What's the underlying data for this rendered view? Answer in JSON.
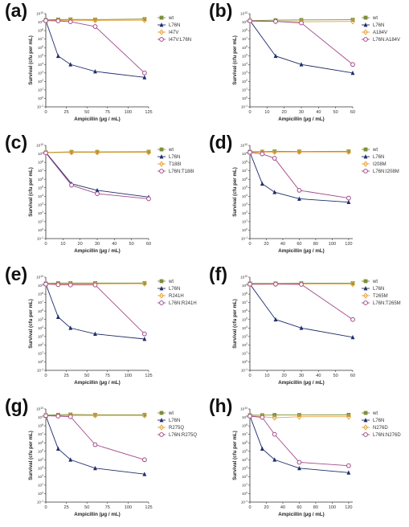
{
  "chart_data": [
    {
      "panel": "(a)",
      "type": "line",
      "xlabel": "Ampicillin (μg / mL)",
      "ylabel": "Survival (cfu per mL)",
      "xlim": [
        0,
        125
      ],
      "xticks": [
        "0",
        "25",
        "50",
        "75",
        "100",
        "125"
      ],
      "ylim_exp": [
        -1,
        10
      ],
      "log_y": true,
      "series": [
        {
          "name": "wt",
          "color": "#7a8f3a",
          "marker": "square",
          "x": [
            0,
            15,
            30,
            60,
            120
          ],
          "y": [
            1800000000.0,
            2000000000.0,
            2100000000.0,
            2000000000.0,
            2300000000.0
          ]
        },
        {
          "name": "L76N",
          "color": "#1f2d6b",
          "marker": "triangle",
          "x": [
            0,
            15,
            30,
            60,
            120
          ],
          "y": [
            1500000000.0,
            100000.0,
            10000.0,
            1500.0,
            300.0
          ]
        },
        {
          "name": "I47V",
          "color": "#e8a33a",
          "marker": "diamond",
          "x": [
            0,
            15,
            30,
            60,
            120
          ],
          "y": [
            1500000000.0,
            1600000000.0,
            1700000000.0,
            1600000000.0,
            1700000000.0
          ]
        },
        {
          "name": "I47V:L76N",
          "color": "#a24a8a",
          "marker": "circle",
          "x": [
            0,
            15,
            30,
            60,
            120
          ],
          "y": [
            1500000000.0,
            1400000000.0,
            1100000000.0,
            300000000.0,
            1000.0
          ]
        }
      ]
    },
    {
      "panel": "(b)",
      "type": "line",
      "xlabel": "Ampicillin (μg / mL)",
      "ylabel": "Survival (cfu per mL)",
      "xlim": [
        0,
        60
      ],
      "xticks": [
        "0",
        "10",
        "20",
        "30",
        "40",
        "50",
        "60"
      ],
      "ylim_exp": [
        -1,
        10
      ],
      "log_y": true,
      "series": [
        {
          "name": "wt",
          "color": "#7a8f3a",
          "marker": "square",
          "x": [
            0,
            15,
            30,
            60
          ],
          "y": [
            1500000000.0,
            1700000000.0,
            1800000000.0,
            1900000000.0
          ]
        },
        {
          "name": "L76N",
          "color": "#1f2d6b",
          "marker": "triangle",
          "x": [
            0,
            15,
            30,
            60
          ],
          "y": [
            1500000000.0,
            100000.0,
            10000.0,
            1000.0
          ]
        },
        {
          "name": "A184V",
          "color": "#e8a33a",
          "marker": "diamond",
          "x": [
            0,
            15,
            30,
            60
          ],
          "y": [
            1300000000.0,
            1200000000.0,
            1100000000.0,
            1200000000.0
          ]
        },
        {
          "name": "L76N:A184V",
          "color": "#a24a8a",
          "marker": "circle",
          "x": [
            0,
            15,
            30,
            60
          ],
          "y": [
            1400000000.0,
            1200000000.0,
            800000000.0,
            10000.0
          ]
        }
      ]
    },
    {
      "panel": "(c)",
      "type": "line",
      "xlabel": "Ampicillin (μg / mL)",
      "ylabel": "Survival (cfu per mL)",
      "xlim": [
        0,
        60
      ],
      "xticks": [
        "0",
        "10",
        "20",
        "30",
        "40",
        "50",
        "60"
      ],
      "ylim_exp": [
        -1,
        10
      ],
      "log_y": true,
      "series": [
        {
          "name": "wt",
          "color": "#7a8f3a",
          "marker": "square",
          "x": [
            0,
            15,
            30,
            60
          ],
          "y": [
            1500000000.0,
            1700000000.0,
            1700000000.0,
            1800000000.0
          ]
        },
        {
          "name": "L76N",
          "color": "#1f2d6b",
          "marker": "triangle",
          "x": [
            0,
            15,
            30,
            60
          ],
          "y": [
            1500000000.0,
            300000.0,
            50000.0,
            8000.0
          ]
        },
        {
          "name": "T188I",
          "color": "#e8a33a",
          "marker": "diamond",
          "x": [
            0,
            15,
            30,
            60
          ],
          "y": [
            1400000000.0,
            1500000000.0,
            1500000000.0,
            1500000000.0
          ]
        },
        {
          "name": "L76N:T188I",
          "color": "#a24a8a",
          "marker": "circle",
          "x": [
            0,
            15,
            30,
            60
          ],
          "y": [
            1300000000.0,
            200000.0,
            20000.0,
            5000.0
          ]
        }
      ]
    },
    {
      "panel": "(d)",
      "type": "line",
      "xlabel": "Ampicillin (μg / mL)",
      "ylabel": "Survival (cfu per mL)",
      "xlim": [
        0,
        125
      ],
      "xticks": [
        "0",
        "20",
        "40",
        "60",
        "80",
        "100",
        "120"
      ],
      "ylim_exp": [
        -1,
        10
      ],
      "log_y": true,
      "series": [
        {
          "name": "wt",
          "color": "#7a8f3a",
          "marker": "square",
          "x": [
            0,
            15,
            30,
            60,
            120
          ],
          "y": [
            1800000000.0,
            1800000000.0,
            2000000000.0,
            1900000000.0,
            2000000000.0
          ]
        },
        {
          "name": "L76N",
          "color": "#1f2d6b",
          "marker": "triangle",
          "x": [
            0,
            15,
            30,
            60,
            120
          ],
          "y": [
            1500000000.0,
            300000.0,
            30000.0,
            5000.0,
            2000.0
          ]
        },
        {
          "name": "I208M",
          "color": "#e8a33a",
          "marker": "diamond",
          "x": [
            0,
            15,
            30,
            60,
            120
          ],
          "y": [
            1600000000.0,
            1600000000.0,
            1700000000.0,
            1700000000.0,
            1700000000.0
          ]
        },
        {
          "name": "L76N:I208M",
          "color": "#a24a8a",
          "marker": "circle",
          "x": [
            0,
            15,
            30,
            60,
            120
          ],
          "y": [
            1500000000.0,
            1000000000.0,
            300000000.0,
            50000.0,
            6000.0
          ]
        }
      ]
    },
    {
      "panel": "(e)",
      "type": "line",
      "xlabel": "Ampicillin (μg / mL)",
      "ylabel": "Survival (cfu per mL)",
      "xlim": [
        0,
        125
      ],
      "xticks": [
        "0",
        "25",
        "50",
        "75",
        "100",
        "125"
      ],
      "ylim_exp": [
        -1,
        10
      ],
      "log_y": true,
      "series": [
        {
          "name": "wt",
          "color": "#7a8f3a",
          "marker": "square",
          "x": [
            0,
            15,
            30,
            60,
            120
          ],
          "y": [
            1800000000.0,
            2000000000.0,
            2000000000.0,
            2000000000.0,
            2000000000.0
          ]
        },
        {
          "name": "L76N",
          "color": "#1f2d6b",
          "marker": "triangle",
          "x": [
            0,
            15,
            30,
            60,
            120
          ],
          "y": [
            1500000000.0,
            200000.0,
            10000.0,
            2000.0,
            500.0
          ]
        },
        {
          "name": "R241H",
          "color": "#e8a33a",
          "marker": "diamond",
          "x": [
            0,
            15,
            30,
            60,
            120
          ],
          "y": [
            1500000000.0,
            1600000000.0,
            1600000000.0,
            1600000000.0,
            1700000000.0
          ]
        },
        {
          "name": "L76N:R241H",
          "color": "#a24a8a",
          "marker": "circle",
          "x": [
            0,
            15,
            30,
            60,
            120
          ],
          "y": [
            1500000000.0,
            1300000000.0,
            1200000000.0,
            1200000000.0,
            2000.0
          ]
        }
      ]
    },
    {
      "panel": "(f)",
      "type": "line",
      "xlabel": "Ampicillin (μg / mL)",
      "ylabel": "Survival (cfu per mL)",
      "xlim": [
        0,
        60
      ],
      "xticks": [
        "0",
        "10",
        "20",
        "30",
        "40",
        "50",
        "60"
      ],
      "ylim_exp": [
        -1,
        10
      ],
      "log_y": true,
      "series": [
        {
          "name": "wt",
          "color": "#7a8f3a",
          "marker": "square",
          "x": [
            0,
            15,
            30,
            60
          ],
          "y": [
            1800000000.0,
            1800000000.0,
            1900000000.0,
            1900000000.0
          ]
        },
        {
          "name": "L76N",
          "color": "#1f2d6b",
          "marker": "triangle",
          "x": [
            0,
            15,
            30,
            60
          ],
          "y": [
            1500000000.0,
            100000.0,
            10000.0,
            800.0
          ]
        },
        {
          "name": "T265M",
          "color": "#e8a33a",
          "marker": "diamond",
          "x": [
            0,
            15,
            30,
            60
          ],
          "y": [
            1400000000.0,
            1500000000.0,
            1600000000.0,
            1500000000.0
          ]
        },
        {
          "name": "L76N:T265M",
          "color": "#a24a8a",
          "marker": "circle",
          "x": [
            0,
            15,
            30,
            60
          ],
          "y": [
            1500000000.0,
            1500000000.0,
            1400000000.0,
            100000.0
          ]
        }
      ]
    },
    {
      "panel": "(g)",
      "type": "line",
      "xlabel": "Ampicillin (μg / mL)",
      "ylabel": "Survival (cfu per mL)",
      "xlim": [
        0,
        125
      ],
      "xticks": [
        "0",
        "25",
        "50",
        "75",
        "100",
        "125"
      ],
      "ylim_exp": [
        -1,
        10
      ],
      "log_y": true,
      "series": [
        {
          "name": "wt",
          "color": "#7a8f3a",
          "marker": "square",
          "x": [
            0,
            15,
            30,
            60,
            120
          ],
          "y": [
            1800000000.0,
            2000000000.0,
            2200000000.0,
            2000000000.0,
            2000000000.0
          ]
        },
        {
          "name": "L76N",
          "color": "#1f2d6b",
          "marker": "triangle",
          "x": [
            0,
            15,
            30,
            60,
            120
          ],
          "y": [
            1500000000.0,
            200000.0,
            10000.0,
            1000.0,
            200.0
          ]
        },
        {
          "name": "R275Q",
          "color": "#e8a33a",
          "marker": "diamond",
          "x": [
            0,
            15,
            30,
            60,
            120
          ],
          "y": [
            1500000000.0,
            1600000000.0,
            1700000000.0,
            1700000000.0,
            1700000000.0
          ]
        },
        {
          "name": "L76N:R275Q",
          "color": "#a24a8a",
          "marker": "circle",
          "x": [
            0,
            15,
            30,
            60,
            120
          ],
          "y": [
            1600000000.0,
            1400000000.0,
            1200000000.0,
            600000.0,
            10000.0
          ]
        }
      ]
    },
    {
      "panel": "(h)",
      "type": "line",
      "xlabel": "Ampicillin (μg / mL)",
      "ylabel": "Survival (cfu per mL)",
      "xlim": [
        0,
        125
      ],
      "xticks": [
        "0",
        "20",
        "40",
        "60",
        "80",
        "100",
        "120"
      ],
      "ylim_exp": [
        -1,
        10
      ],
      "log_y": true,
      "series": [
        {
          "name": "wt",
          "color": "#7a8f3a",
          "marker": "square",
          "x": [
            0,
            15,
            30,
            60,
            120
          ],
          "y": [
            1800000000.0,
            1800000000.0,
            1900000000.0,
            1900000000.0,
            2000000000.0
          ]
        },
        {
          "name": "L76N",
          "color": "#1f2d6b",
          "marker": "triangle",
          "x": [
            0,
            15,
            30,
            60,
            120
          ],
          "y": [
            1500000000.0,
            200000.0,
            10000.0,
            1000.0,
            300.0
          ]
        },
        {
          "name": "N276D",
          "color": "#e8a33a",
          "marker": "diamond",
          "x": [
            0,
            15,
            30,
            60,
            120
          ],
          "y": [
            1500000000.0,
            1200000000.0,
            900000000.0,
            1200000000.0,
            1200000000.0
          ]
        },
        {
          "name": "L76N:N276D",
          "color": "#a24a8a",
          "marker": "circle",
          "x": [
            0,
            15,
            30,
            60,
            120
          ],
          "y": [
            1400000000.0,
            1000000000.0,
            10000000.0,
            5000.0,
            2000.0
          ]
        }
      ]
    }
  ]
}
